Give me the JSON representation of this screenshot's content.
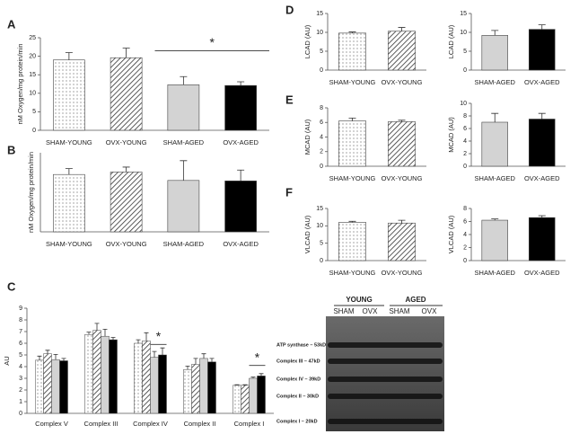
{
  "chart_data": [
    {
      "type": "bar",
      "panel": "A",
      "ylabel": "nM Oxygen/mg protein/min",
      "categories": [
        "SHAM-YOUNG",
        "OVX-YOUNG",
        "SHAM-AGED",
        "OVX-AGED"
      ],
      "values": [
        19,
        19.6,
        12.3,
        12.1
      ],
      "errors": [
        2,
        2.6,
        2.2,
        1
      ],
      "patterns": [
        "dots",
        "hatch",
        "solid",
        "solid"
      ],
      "colors": [
        "#ffffff",
        "#ffffff",
        "#d3d3d3",
        "#000000"
      ],
      "ylim": [
        0,
        25
      ],
      "yticks": [
        0,
        5,
        10,
        15,
        20,
        25
      ],
      "annotations": [
        "*"
      ]
    },
    {
      "type": "bar",
      "panel": "B",
      "ylabel": "nM Oxygen/mg protein/min",
      "categories": [
        "SHAM-YOUNG",
        "OVX-YOUNG",
        "SHAM-AGED",
        "OVX-AGED"
      ],
      "values": [
        5.8,
        6.05,
        5.2,
        5.15
      ],
      "errors": [
        0.6,
        0.5,
        2,
        1.1
      ],
      "patterns": [
        "dots",
        "hatch",
        "solid",
        "solid"
      ],
      "colors": [
        "#ffffff",
        "#ffffff",
        "#d3d3d3",
        "#000000"
      ],
      "ylim": [
        0,
        8
      ]
    },
    {
      "type": "bar",
      "panel": "C",
      "ylabel": "AU",
      "categories": [
        "Complex V",
        "Complex III",
        "Complex IV",
        "Complex II",
        "Complex I"
      ],
      "series": [
        {
          "pattern": "dots",
          "color": "#ffffff",
          "values": [
            4.55,
            6.75,
            6.0,
            3.75,
            2.4
          ],
          "errors": [
            0.35,
            0.2,
            0.3,
            0.3,
            0.05
          ]
        },
        {
          "pattern": "hatch",
          "color": "#ffffff",
          "values": [
            5.1,
            7.1,
            6.2,
            4.2,
            2.4
          ],
          "errors": [
            0.3,
            0.6,
            0.7,
            0.5,
            0.05
          ]
        },
        {
          "pattern": "solid",
          "color": "#d3d3d3",
          "values": [
            4.6,
            6.6,
            4.8,
            4.7,
            3.0
          ],
          "errors": [
            0.45,
            0.6,
            0.5,
            0.4,
            0.1
          ]
        },
        {
          "pattern": "solid",
          "color": "#000000",
          "values": [
            4.5,
            6.3,
            5.0,
            4.4,
            3.2
          ],
          "errors": [
            0.2,
            0.2,
            0.6,
            0.3,
            0.2
          ]
        }
      ],
      "ylim": [
        0,
        9
      ],
      "yticks": [
        0,
        1,
        2,
        3,
        4,
        5,
        6,
        7,
        8,
        9
      ],
      "annotations": [
        "*",
        "*"
      ]
    },
    {
      "type": "bar",
      "panel": "D",
      "ylabel": "LCAD (AU)",
      "categories": [
        "SHAM-YOUNG",
        "OVX-YOUNG"
      ],
      "values": [
        9.8,
        10.3
      ],
      "errors": [
        0.3,
        1
      ],
      "patterns": [
        "dots",
        "hatch"
      ],
      "colors": [
        "#ffffff",
        "#ffffff"
      ],
      "ylim": [
        0,
        15
      ],
      "yticks": [
        0,
        5,
        10,
        15
      ]
    },
    {
      "type": "bar",
      "ylabel": "LCAD (AU)",
      "categories": [
        "SHAM-AGED",
        "OVX-AGED"
      ],
      "values": [
        9.2,
        10.8
      ],
      "errors": [
        1.3,
        1.2
      ],
      "patterns": [
        "solid",
        "solid"
      ],
      "colors": [
        "#d3d3d3",
        "#000000"
      ],
      "ylim": [
        0,
        15
      ],
      "yticks": [
        0,
        5,
        10,
        15
      ]
    },
    {
      "type": "bar",
      "panel": "E",
      "ylabel": "MCAD (AU)",
      "categories": [
        "SHAM-YOUNG",
        "OVX-YOUNG"
      ],
      "values": [
        6.2,
        6.1
      ],
      "errors": [
        0.4,
        0.2
      ],
      "patterns": [
        "dots",
        "hatch"
      ],
      "colors": [
        "#ffffff",
        "#ffffff"
      ],
      "ylim": [
        0,
        8
      ],
      "yticks": [
        0,
        2,
        4,
        6,
        8
      ]
    },
    {
      "type": "bar",
      "ylabel": "MCAD (AU)",
      "categories": [
        "SHAM-AGED",
        "OVX-AGED"
      ],
      "values": [
        7.0,
        7.5
      ],
      "errors": [
        1.4,
        0.9
      ],
      "patterns": [
        "solid",
        "solid"
      ],
      "colors": [
        "#d3d3d3",
        "#000000"
      ],
      "ylim": [
        0,
        10
      ],
      "yticks": [
        0,
        2,
        4,
        6,
        8,
        10
      ]
    },
    {
      "type": "bar",
      "panel": "F",
      "ylabel": "VLCAD (AU)",
      "categories": [
        "SHAM-YOUNG",
        "OVX-YOUNG"
      ],
      "values": [
        11,
        10.8
      ],
      "errors": [
        0.3,
        0.8
      ],
      "patterns": [
        "dots",
        "hatch"
      ],
      "colors": [
        "#ffffff",
        "#ffffff"
      ],
      "ylim": [
        0,
        15
      ],
      "yticks": [
        0,
        5,
        10,
        15
      ]
    },
    {
      "type": "bar",
      "ylabel": "VLCAD (AU)",
      "categories": [
        "SHAM-AGED",
        "OVX-AGED"
      ],
      "values": [
        6.2,
        6.6
      ],
      "errors": [
        0.2,
        0.3
      ],
      "patterns": [
        "solid",
        "solid"
      ],
      "colors": [
        "#d3d3d3",
        "#000000"
      ],
      "ylim": [
        0,
        8
      ],
      "yticks": [
        0,
        2,
        4,
        6,
        8
      ]
    }
  ],
  "blot": {
    "groups": [
      "YOUNG",
      "AGED"
    ],
    "lanes": [
      "SHAM",
      "OVX",
      "SHAM",
      "OVX"
    ],
    "bands": [
      "ATP synthase – 53kD",
      "Complex III – 47kD",
      "Complex IV – 39kD",
      "Complex II – 30kD",
      "Complex I – 20kD"
    ]
  }
}
